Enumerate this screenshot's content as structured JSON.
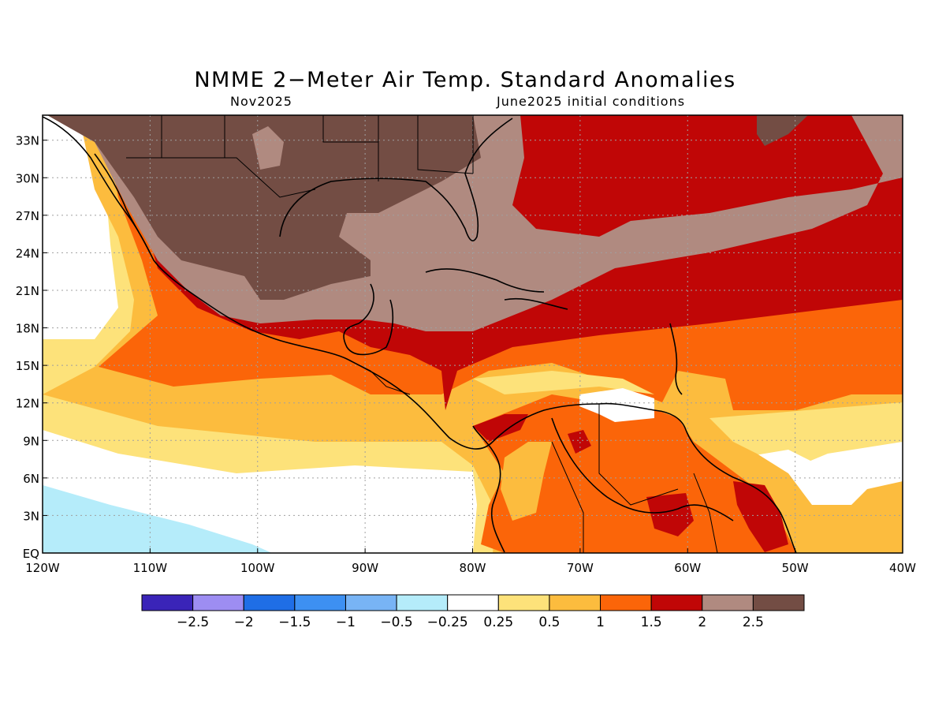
{
  "title": "NMME 2−Meter Air Temp. Standard Anomalies",
  "subtitle_left": "Nov2025",
  "subtitle_right": "June2025 initial conditions",
  "lat_ticks": [
    "33N",
    "30N",
    "27N",
    "24N",
    "21N",
    "18N",
    "15N",
    "12N",
    "9N",
    "6N",
    "3N",
    "EQ"
  ],
  "lon_ticks": [
    "120W",
    "110W",
    "100W",
    "90W",
    "80W",
    "70W",
    "60W",
    "50W",
    "40W"
  ],
  "colorbar": {
    "labels": [
      "−2.5",
      "−2",
      "−1.5",
      "−1",
      "−0.5",
      "−0.25",
      "0.25",
      "0.5",
      "1",
      "1.5",
      "2",
      "2.5"
    ],
    "colors": [
      "#3a24b8",
      "#9d8df2",
      "#1f6ee6",
      "#3d90f2",
      "#78b4f5",
      "#b5ecfa",
      "#ffffff",
      "#fde27a",
      "#fcbc3e",
      "#fb6509",
      "#c00606",
      "#b08a80",
      "#734d44"
    ]
  }
}
